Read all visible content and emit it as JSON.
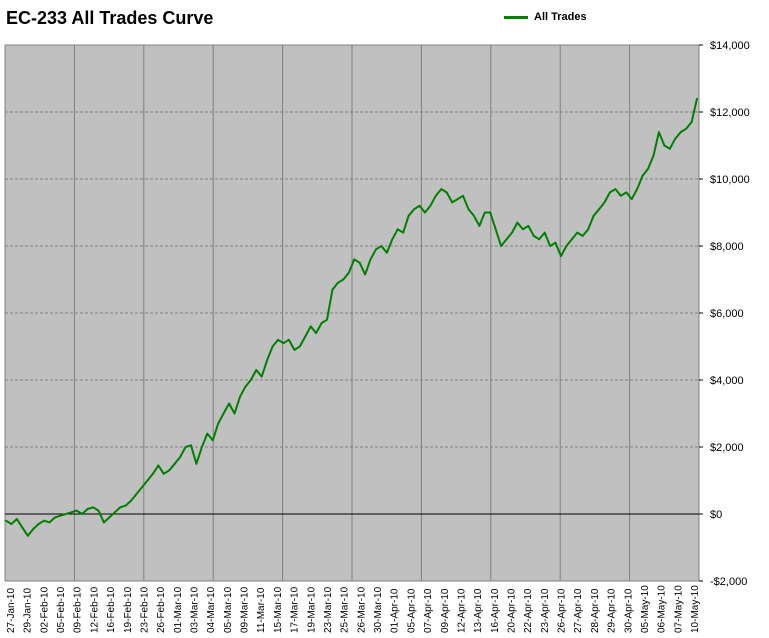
{
  "chart_data": {
    "type": "line",
    "title": "EC-233 All Trades Curve",
    "xlabel": "",
    "ylabel": "",
    "ylim": [
      -2000,
      14000
    ],
    "grid": true,
    "legend_position": "top-right",
    "y_ticks": [
      {
        "value": -2000,
        "label": "-$2,000"
      },
      {
        "value": 0,
        "label": "$0"
      },
      {
        "value": 2000,
        "label": "$2,000"
      },
      {
        "value": 4000,
        "label": "$4,000"
      },
      {
        "value": 6000,
        "label": "$6,000"
      },
      {
        "value": 8000,
        "label": "$8,000"
      },
      {
        "value": 10000,
        "label": "$10,000"
      },
      {
        "value": 12000,
        "label": "$12,000"
      },
      {
        "value": 14000,
        "label": "$14,000"
      }
    ],
    "x_labels": [
      "27-Jan-10",
      "29-Jan-10",
      "02-Feb-10",
      "05-Feb-10",
      "09-Feb-10",
      "12-Feb-10",
      "16-Feb-10",
      "19-Feb-10",
      "23-Feb-10",
      "26-Feb-10",
      "01-Mar-10",
      "03-Mar-10",
      "04-Mar-10",
      "05-Mar-10",
      "09-Mar-10",
      "11-Mar-10",
      "15-Mar-10",
      "17-Mar-10",
      "19-Mar-10",
      "23-Mar-10",
      "25-Mar-10",
      "26-Mar-10",
      "30-Mar-10",
      "01-Apr-10",
      "05-Apr-10",
      "07-Apr-10",
      "09-Apr-10",
      "12-Apr-10",
      "13-Apr-10",
      "16-Apr-10",
      "20-Apr-10",
      "22-Apr-10",
      "23-Apr-10",
      "26-Apr-10",
      "27-Apr-10",
      "28-Apr-10",
      "29-Apr-10",
      "30-Apr-10",
      "05-May-10",
      "06-May-10",
      "07-May-10",
      "10-May-10"
    ],
    "series": [
      {
        "name": "All Trades",
        "color": "#008000",
        "x_start": "27-Jan-10",
        "x_end": "10-May-10",
        "values": [
          -200,
          -300,
          -150,
          -400,
          -650,
          -450,
          -300,
          -200,
          -250,
          -100,
          -50,
          0,
          50,
          100,
          0,
          150,
          200,
          100,
          -250,
          -100,
          50,
          200,
          250,
          400,
          600,
          800,
          1000,
          1200,
          1450,
          1200,
          1300,
          1500,
          1700,
          2000,
          2050,
          1500,
          2000,
          2400,
          2200,
          2700,
          3000,
          3300,
          3000,
          3500,
          3800,
          4000,
          4300,
          4100,
          4600,
          5000,
          5200,
          5100,
          5200,
          4900,
          5000,
          5300,
          5600,
          5400,
          5700,
          5800,
          6700,
          6900,
          7000,
          7200,
          7600,
          7500,
          7150,
          7600,
          7900,
          8000,
          7800,
          8200,
          8500,
          8400,
          8900,
          9100,
          9200,
          9000,
          9200,
          9500,
          9700,
          9600,
          9300,
          9400,
          9500,
          9100,
          8900,
          8600,
          9000,
          9000,
          8500,
          8000,
          8200,
          8400,
          8700,
          8500,
          8600,
          8300,
          8200,
          8400,
          8000,
          8100,
          7700,
          8000,
          8200,
          8400,
          8300,
          8500,
          8900,
          9100,
          9300,
          9600,
          9700,
          9500,
          9600,
          9400,
          9700,
          10100,
          10300,
          10700,
          11400,
          11000,
          10900,
          11200,
          11400,
          11500,
          11700,
          12400
        ]
      }
    ]
  }
}
